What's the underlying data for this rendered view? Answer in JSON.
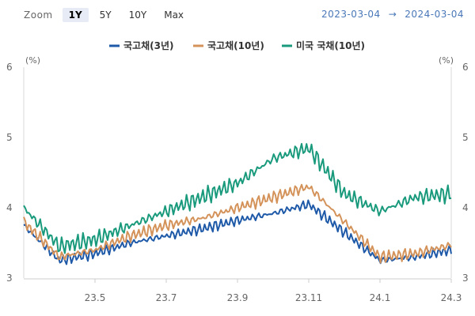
{
  "toolbar": {
    "zoom_label": "Zoom",
    "buttons": [
      "1Y",
      "5Y",
      "10Y",
      "Max"
    ],
    "active": "1Y",
    "date_from": "2023-03-04",
    "arrow": "→",
    "date_to": "2024-03-04"
  },
  "colors": {
    "kr3": "#1f5aa8",
    "kr10": "#d4935a",
    "us10": "#1a9a7c",
    "active_bg": "#e6ebf5"
  },
  "chart_data": {
    "type": "line",
    "title": "",
    "xlabel": "",
    "ylabel_left": "(%)",
    "ylabel_right": "(%)",
    "x_ticks": [
      "23.5",
      "23.7",
      "23.9",
      "23.11",
      "24.1",
      "24.3"
    ],
    "y_ticks": [
      "3",
      "4",
      "5",
      "6"
    ],
    "ylim": [
      3,
      6
    ],
    "legend_position": "top-center",
    "grid": false,
    "x": [
      "23.3",
      "23.4",
      "23.5",
      "23.6",
      "23.7",
      "23.8",
      "23.9",
      "23.10",
      "23.11",
      "23.12",
      "24.1",
      "24.2",
      "24.3"
    ],
    "series": [
      {
        "name": "국고채(3년)",
        "values": [
          3.75,
          3.25,
          3.35,
          3.5,
          3.6,
          3.7,
          3.82,
          3.92,
          4.05,
          3.65,
          3.25,
          3.3,
          3.4
        ]
      },
      {
        "name": "국고채(10년)",
        "values": [
          3.8,
          3.3,
          3.4,
          3.6,
          3.75,
          3.85,
          4.0,
          4.15,
          4.3,
          3.8,
          3.3,
          3.35,
          3.47
        ]
      },
      {
        "name": "미국 국채(10년)",
        "values": [
          4.0,
          3.45,
          3.55,
          3.75,
          3.95,
          4.15,
          4.35,
          4.7,
          4.85,
          4.2,
          3.95,
          4.15,
          4.2
        ]
      }
    ]
  }
}
